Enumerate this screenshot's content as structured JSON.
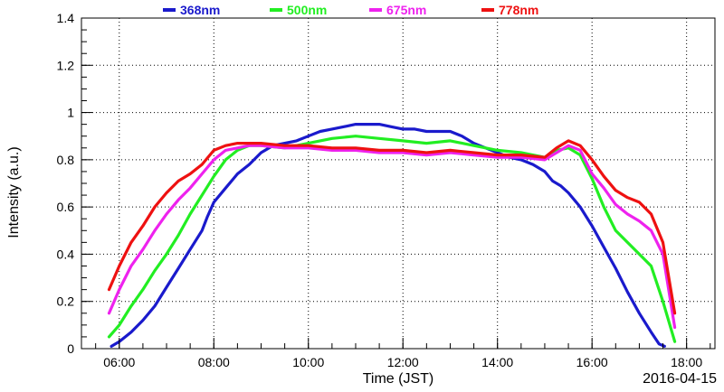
{
  "chart_data": {
    "type": "line",
    "title": "",
    "xlabel": "Time (JST)",
    "ylabel": "Intensity (a.u.)",
    "date_label": "2016-04-15",
    "grid": true,
    "legend_position": "top",
    "xlim": [
      "05:12",
      "18:36"
    ],
    "ylim": [
      0,
      1.4
    ],
    "x_ticks": [
      "06:00",
      "08:00",
      "10:00",
      "12:00",
      "14:00",
      "16:00",
      "18:00"
    ],
    "y_ticks": [
      "0",
      "0.2",
      "0.4",
      "0.6",
      "0.8",
      "1",
      "1.2",
      "1.4"
    ],
    "series": [
      {
        "name": "368nm",
        "color": "#1a1acc",
        "x": [
          "05:50",
          "06:00",
          "06:15",
          "06:30",
          "06:45",
          "07:00",
          "07:15",
          "07:30",
          "07:45",
          "07:52",
          "08:00",
          "08:15",
          "08:30",
          "08:45",
          "09:00",
          "09:15",
          "09:30",
          "09:45",
          "10:00",
          "10:15",
          "10:30",
          "10:45",
          "11:00",
          "11:15",
          "11:30",
          "11:45",
          "12:00",
          "12:15",
          "12:30",
          "12:45",
          "13:00",
          "13:15",
          "13:30",
          "13:45",
          "14:00",
          "14:15",
          "14:30",
          "14:45",
          "15:00",
          "15:10",
          "15:20",
          "15:30",
          "15:45",
          "16:00",
          "16:15",
          "16:30",
          "16:45",
          "17:00",
          "17:15",
          "17:25",
          "17:32"
        ],
        "y": [
          0.01,
          0.03,
          0.07,
          0.12,
          0.18,
          0.26,
          0.34,
          0.42,
          0.5,
          0.56,
          0.62,
          0.68,
          0.74,
          0.78,
          0.83,
          0.86,
          0.87,
          0.88,
          0.9,
          0.92,
          0.93,
          0.94,
          0.95,
          0.95,
          0.95,
          0.94,
          0.93,
          0.93,
          0.92,
          0.92,
          0.92,
          0.9,
          0.87,
          0.85,
          0.83,
          0.81,
          0.8,
          0.78,
          0.75,
          0.71,
          0.69,
          0.66,
          0.6,
          0.52,
          0.43,
          0.34,
          0.24,
          0.15,
          0.07,
          0.02,
          0.01
        ]
      },
      {
        "name": "500nm",
        "color": "#22ee22",
        "x": [
          "05:47",
          "06:00",
          "06:15",
          "06:30",
          "06:45",
          "07:00",
          "07:15",
          "07:30",
          "07:45",
          "08:00",
          "08:15",
          "08:30",
          "08:45",
          "09:00",
          "09:30",
          "10:00",
          "10:30",
          "11:00",
          "11:30",
          "12:00",
          "12:30",
          "13:00",
          "13:30",
          "14:00",
          "14:30",
          "15:00",
          "15:15",
          "15:30",
          "15:45",
          "16:00",
          "16:15",
          "16:30",
          "16:45",
          "17:00",
          "17:15",
          "17:30",
          "17:45"
        ],
        "y": [
          0.05,
          0.1,
          0.18,
          0.25,
          0.33,
          0.4,
          0.48,
          0.57,
          0.65,
          0.73,
          0.8,
          0.84,
          0.86,
          0.86,
          0.85,
          0.87,
          0.89,
          0.9,
          0.89,
          0.88,
          0.87,
          0.88,
          0.86,
          0.84,
          0.83,
          0.81,
          0.84,
          0.85,
          0.82,
          0.72,
          0.6,
          0.5,
          0.45,
          0.4,
          0.35,
          0.2,
          0.03
        ]
      },
      {
        "name": "675nm",
        "color": "#ee22ee",
        "x": [
          "05:47",
          "06:00",
          "06:15",
          "06:30",
          "06:45",
          "07:00",
          "07:15",
          "07:30",
          "07:45",
          "08:00",
          "08:15",
          "08:30",
          "08:45",
          "09:00",
          "09:30",
          "10:00",
          "10:30",
          "11:00",
          "11:30",
          "12:00",
          "12:30",
          "13:00",
          "13:30",
          "14:00",
          "14:30",
          "15:00",
          "15:15",
          "15:30",
          "15:45",
          "16:00",
          "16:15",
          "16:30",
          "16:45",
          "17:00",
          "17:15",
          "17:30",
          "17:45"
        ],
        "y": [
          0.15,
          0.25,
          0.35,
          0.42,
          0.5,
          0.57,
          0.63,
          0.68,
          0.74,
          0.8,
          0.84,
          0.85,
          0.86,
          0.86,
          0.85,
          0.85,
          0.84,
          0.84,
          0.83,
          0.83,
          0.82,
          0.83,
          0.82,
          0.81,
          0.81,
          0.8,
          0.83,
          0.86,
          0.84,
          0.74,
          0.68,
          0.61,
          0.57,
          0.54,
          0.5,
          0.4,
          0.09
        ]
      },
      {
        "name": "778nm",
        "color": "#ee1111",
        "x": [
          "05:47",
          "06:00",
          "06:15",
          "06:30",
          "06:45",
          "07:00",
          "07:15",
          "07:30",
          "07:45",
          "08:00",
          "08:15",
          "08:30",
          "08:45",
          "09:00",
          "09:30",
          "10:00",
          "10:30",
          "11:00",
          "11:30",
          "12:00",
          "12:30",
          "13:00",
          "13:30",
          "14:00",
          "14:30",
          "15:00",
          "15:15",
          "15:30",
          "15:45",
          "16:00",
          "16:15",
          "16:30",
          "16:45",
          "17:00",
          "17:15",
          "17:30",
          "17:45"
        ],
        "y": [
          0.25,
          0.35,
          0.45,
          0.52,
          0.6,
          0.66,
          0.71,
          0.74,
          0.78,
          0.84,
          0.86,
          0.87,
          0.87,
          0.87,
          0.86,
          0.86,
          0.85,
          0.85,
          0.84,
          0.84,
          0.83,
          0.84,
          0.83,
          0.82,
          0.82,
          0.81,
          0.85,
          0.88,
          0.86,
          0.8,
          0.73,
          0.67,
          0.64,
          0.62,
          0.57,
          0.45,
          0.15
        ]
      }
    ]
  }
}
